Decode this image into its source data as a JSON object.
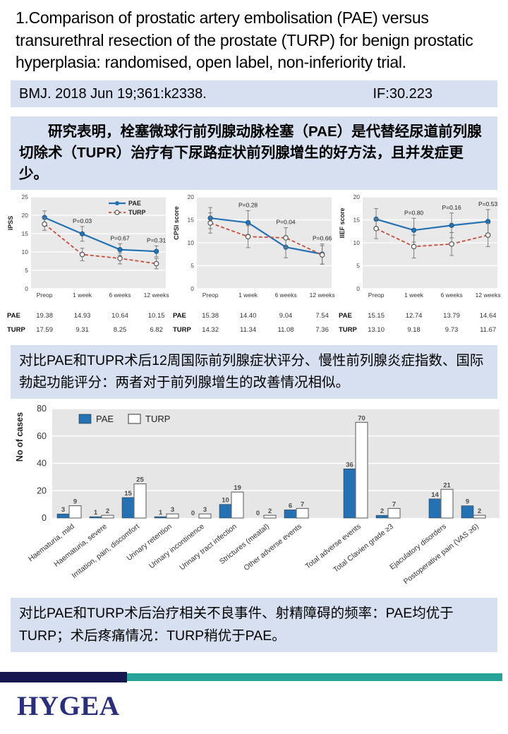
{
  "slide": {
    "title": "1.Comparison of prostatic artery embolisation (PAE) versus transurethral resection of the prostate (TURP) for benign prostatic hyperplasia: randomised, open label, non-inferiority trial.",
    "citation": {
      "reference": "BMJ. 2018 Jun 19;361:k2338.",
      "impact_factor": "IF:30.223"
    },
    "summaries": {
      "methods": "研究表明，栓塞微球行前列腺动脉栓塞（PAE）是代替经尿道前列腺切除术（TUPR）治疗有下尿路症状前列腺增生的好方法，且并发症更少。",
      "outcomes": "对比PAE和TUPR术后12周国际前列腺症状评分、慢性前列腺炎症指数、国际勃起功能评分：两者对于前列腺增生的改善情况相似。",
      "adverse": "对比PAE和TURP术后治疗相关不良事件、射精障碍的频率：PAE均优于TURP；术后疼痛情况：TURP稍优于PAE。"
    },
    "logo_text": "HYGEA"
  },
  "colors": {
    "highlight_bar": "#d6e0f0",
    "pae_blue": "#2472b3",
    "turp_red": "#c2503d",
    "plot_background": "#e9e9e9",
    "footer_navy": "#171750",
    "footer_teal": "#27a399",
    "logo_navy": "#2b2f7a"
  },
  "chart_data": [
    {
      "type": "line",
      "ylabel": "IPSS",
      "ylim": [
        0,
        25
      ],
      "yticks": [
        0,
        5,
        10,
        15,
        20,
        25
      ],
      "categories": [
        "Preop",
        "1 week",
        "6 weeks",
        "12 weeks"
      ],
      "series": [
        {
          "name": "PAE",
          "values": [
            19.38,
            14.93,
            10.64,
            10.15
          ],
          "err": [
            1.8,
            2.0,
            1.6,
            1.5
          ],
          "color": "#2472b3",
          "style": "solid"
        },
        {
          "name": "TURP",
          "values": [
            17.59,
            9.31,
            8.25,
            6.82
          ],
          "err": [
            1.7,
            1.7,
            1.5,
            1.4
          ],
          "color": "#c2503d",
          "style": "dashed"
        }
      ],
      "p_values": [
        "P=0.03",
        "P=0.67",
        "P=0.31"
      ],
      "legend": true,
      "grid": true
    },
    {
      "type": "line",
      "ylabel": "CPSI score",
      "ylim": [
        0,
        20
      ],
      "yticks": [
        0,
        5,
        10,
        15,
        20
      ],
      "categories": [
        "Preop",
        "1 week",
        "6 weeks",
        "12 weeks"
      ],
      "series": [
        {
          "name": "PAE",
          "values": [
            15.38,
            14.4,
            9.04,
            7.54
          ],
          "err": [
            2.3,
            2.6,
            2.3,
            2.2
          ],
          "color": "#2472b3",
          "style": "solid"
        },
        {
          "name": "TURP",
          "values": [
            14.32,
            11.34,
            11.08,
            7.36
          ],
          "err": [
            2.2,
            2.4,
            2.2,
            2.0
          ],
          "color": "#c2503d",
          "style": "dashed"
        }
      ],
      "p_values": [
        "P=0.28",
        "P=0.04",
        "P=0.66"
      ],
      "legend": false,
      "grid": true
    },
    {
      "type": "line",
      "ylabel": "IIEF score",
      "ylim": [
        0,
        20
      ],
      "yticks": [
        0,
        5,
        10,
        15,
        20
      ],
      "categories": [
        "Preop",
        "1 week",
        "6 weeks",
        "12 weeks"
      ],
      "series": [
        {
          "name": "PAE",
          "values": [
            15.15,
            12.74,
            13.79,
            14.64
          ],
          "err": [
            2.3,
            2.6,
            2.7,
            2.6
          ],
          "color": "#2472b3",
          "style": "solid"
        },
        {
          "name": "TURP",
          "values": [
            13.1,
            9.18,
            9.73,
            11.67
          ],
          "err": [
            2.2,
            2.5,
            2.5,
            2.5
          ],
          "color": "#c2503d",
          "style": "dashed"
        }
      ],
      "p_values": [
        "P=0.80",
        "P=0.16",
        "P=0.53"
      ],
      "legend": false,
      "grid": true
    },
    {
      "type": "bar",
      "ylabel": "No of cases",
      "ylim": [
        0,
        80
      ],
      "yticks": [
        0,
        20,
        40,
        60,
        80
      ],
      "categories": [
        "Haematuria, mild",
        "Haematuria, severe",
        "Irritation, pain, discomfort",
        "Urinary retention",
        "Urinary incontinence",
        "Urinary tract infection",
        "Strictures (meatal)",
        "Other adverse events",
        "Total adverse events",
        "Total Clavien grade ≥3",
        "Ejaculatory disorders",
        "Postoperative pain (VAS ≥6)"
      ],
      "series": [
        {
          "name": "PAE",
          "values": [
            3,
            1,
            15,
            1,
            0,
            10,
            0,
            6,
            36,
            2,
            14,
            9
          ],
          "color": "#2472b3"
        },
        {
          "name": "TURP",
          "values": [
            9,
            2,
            25,
            3,
            3,
            19,
            2,
            7,
            70,
            7,
            21,
            2
          ],
          "color": "#ffffff"
        }
      ],
      "extra_gap_before": [
        8,
        10
      ],
      "legend": [
        "PAE",
        "TURP"
      ],
      "grid": true
    }
  ]
}
